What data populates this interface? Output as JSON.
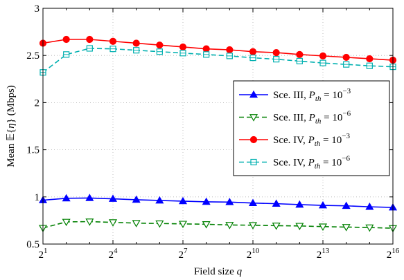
{
  "chart_data": {
    "type": "line",
    "xlabel": "Field size q",
    "ylabel": "Mean 𝔼{η} (Mbps)",
    "x_scale": "log2",
    "x_exponents": [
      1,
      2,
      3,
      4,
      5,
      6,
      7,
      8,
      9,
      10,
      11,
      12,
      13,
      14,
      15,
      16
    ],
    "x_tick_exponents": [
      1,
      4,
      7,
      10,
      13,
      16
    ],
    "x_tick_base": "2",
    "y_ticks": [
      "0.5",
      "1",
      "1.5",
      "2",
      "2.5",
      "3"
    ],
    "ylim": [
      0.5,
      3
    ],
    "grid": true,
    "legend_position": "center-right",
    "series": [
      {
        "name": "Sce. III, Pth = 10^-3",
        "legend_label": "Sce. III,",
        "exp": "−3",
        "color": "#0000ff",
        "dash": "solid",
        "marker": "triangle-up",
        "filled": true,
        "values": [
          0.965,
          0.985,
          0.988,
          0.98,
          0.97,
          0.962,
          0.955,
          0.948,
          0.945,
          0.935,
          0.928,
          0.918,
          0.91,
          0.905,
          0.895,
          0.888
        ]
      },
      {
        "name": "Sce. III, Pth = 10^-6",
        "legend_label": "Sce. III,",
        "exp": "−6",
        "color": "#008000",
        "dash": "dashed",
        "marker": "triangle-down",
        "filled": false,
        "values": [
          0.67,
          0.735,
          0.738,
          0.73,
          0.722,
          0.718,
          0.714,
          0.71,
          0.702,
          0.7,
          0.695,
          0.692,
          0.685,
          0.68,
          0.675,
          0.668
        ]
      },
      {
        "name": "Sce. IV, Pth = 10^-3",
        "legend_label": "Sce. IV,",
        "exp": "−3",
        "color": "#ff0000",
        "dash": "solid",
        "marker": "circle",
        "filled": true,
        "values": [
          2.63,
          2.67,
          2.67,
          2.65,
          2.63,
          2.61,
          2.59,
          2.57,
          2.56,
          2.54,
          2.53,
          2.51,
          2.495,
          2.48,
          2.465,
          2.45
        ]
      },
      {
        "name": "Sce. IV, Pth = 10^-6",
        "legend_label": "Sce. IV,",
        "exp": "−6",
        "color": "#00b0b0",
        "dash": "dashed",
        "marker": "square",
        "filled": false,
        "values": [
          2.32,
          2.51,
          2.575,
          2.57,
          2.555,
          2.54,
          2.525,
          2.51,
          2.495,
          2.475,
          2.46,
          2.44,
          2.42,
          2.405,
          2.39,
          2.38
        ]
      }
    ]
  }
}
